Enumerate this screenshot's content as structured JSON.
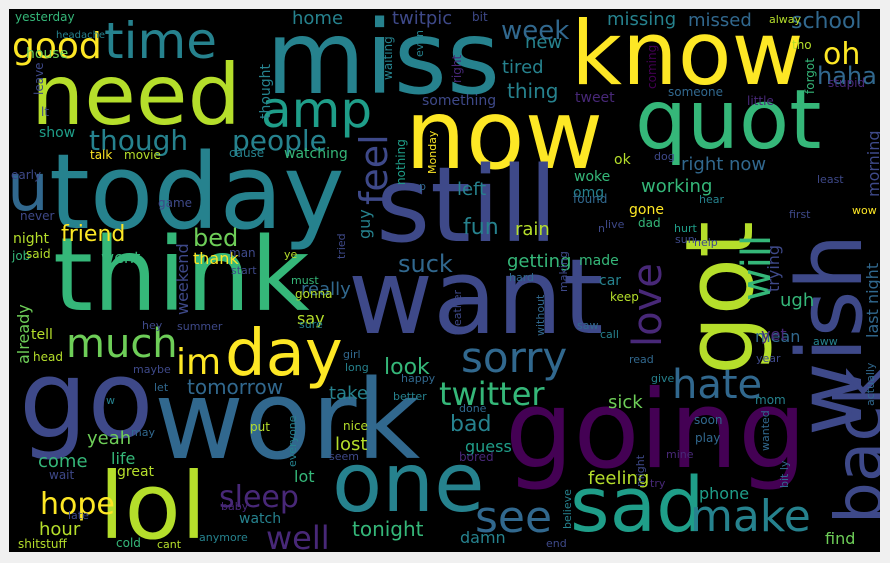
{
  "background": "#000000",
  "palette": [
    "#fde725",
    "#b5de2b",
    "#6ece58",
    "#35b779",
    "#1f9e89",
    "#26828e",
    "#31688e",
    "#3e4989",
    "#482878",
    "#440154"
  ],
  "words": [
    {
      "text": "miss",
      "color": "#26828e"
    },
    {
      "text": "know",
      "color": "#fde725"
    },
    {
      "text": "need",
      "color": "#b5de2b"
    },
    {
      "text": "now",
      "color": "#fde725"
    },
    {
      "text": "quot",
      "color": "#35b779"
    },
    {
      "text": "today",
      "color": "#26828e"
    },
    {
      "text": "still",
      "color": "#3e4989"
    },
    {
      "text": "think",
      "color": "#35b779"
    },
    {
      "text": "want",
      "color": "#3e4989"
    },
    {
      "text": "got",
      "color": "#b5de2b"
    },
    {
      "text": "wish",
      "color": "#3e4989"
    },
    {
      "text": "go",
      "color": "#3e4989"
    },
    {
      "text": "work",
      "color": "#31688e"
    },
    {
      "text": "going",
      "color": "#440154"
    },
    {
      "text": "day",
      "color": "#fde725"
    },
    {
      "text": "one",
      "color": "#26828e"
    },
    {
      "text": "lol",
      "color": "#b5de2b"
    },
    {
      "text": "sad",
      "color": "#1f9e89"
    },
    {
      "text": "back",
      "color": "#3e4989"
    },
    {
      "text": "time",
      "color": "#26828e"
    },
    {
      "text": "amp",
      "color": "#1f9e89"
    },
    {
      "text": "good",
      "color": "#fde725"
    },
    {
      "text": "u",
      "color": "#31688e"
    },
    {
      "text": "though",
      "color": "#26828e"
    },
    {
      "text": "people",
      "color": "#26828e"
    },
    {
      "text": "feel",
      "color": "#3e4989"
    },
    {
      "text": "much",
      "color": "#6ece58"
    },
    {
      "text": "im",
      "color": "#fde725"
    },
    {
      "text": "sorry",
      "color": "#31688e"
    },
    {
      "text": "love",
      "color": "#482878"
    },
    {
      "text": "hate",
      "color": "#31688e"
    },
    {
      "text": "will",
      "color": "#35b779"
    },
    {
      "text": "make",
      "color": "#26828e"
    },
    {
      "text": "twitter",
      "color": "#35b779"
    },
    {
      "text": "see",
      "color": "#31688e"
    },
    {
      "text": "sleep",
      "color": "#482878"
    },
    {
      "text": "hope",
      "color": "#fde725"
    },
    {
      "text": "well",
      "color": "#482878"
    },
    {
      "text": "oh",
      "color": "#fde725"
    },
    {
      "text": "week",
      "color": "#31688e"
    },
    {
      "text": "haha",
      "color": "#31688e"
    },
    {
      "text": "school",
      "color": "#31688e"
    },
    {
      "text": "missing",
      "color": "#26828e"
    },
    {
      "text": "missed",
      "color": "#31688e"
    },
    {
      "text": "tired",
      "color": "#26828e"
    },
    {
      "text": "new",
      "color": "#26828e"
    },
    {
      "text": "thing",
      "color": "#26828e"
    },
    {
      "text": "home",
      "color": "#26828e"
    },
    {
      "text": "twitpic",
      "color": "#3e4989"
    },
    {
      "text": "friend",
      "color": "#fde725"
    },
    {
      "text": "bed",
      "color": "#6ece58"
    },
    {
      "text": "went",
      "color": "#35b779"
    },
    {
      "text": "thank",
      "color": "#fde725"
    },
    {
      "text": "suck",
      "color": "#31688e"
    },
    {
      "text": "really",
      "color": "#31688e"
    },
    {
      "text": "fun",
      "color": "#26828e"
    },
    {
      "text": "rain",
      "color": "#b5de2b"
    },
    {
      "text": "getting",
      "color": "#35b779"
    },
    {
      "text": "working",
      "color": "#35b779"
    },
    {
      "text": "right now",
      "color": "#31688e"
    },
    {
      "text": "morning",
      "color": "#3e4989"
    },
    {
      "text": "last night",
      "color": "#31688e"
    },
    {
      "text": "trying",
      "color": "#3e4989"
    },
    {
      "text": "ugh",
      "color": "#35b779"
    },
    {
      "text": "mean",
      "color": "#31688e"
    },
    {
      "text": "yet",
      "color": "#482878"
    },
    {
      "text": "tomorrow",
      "color": "#31688e"
    },
    {
      "text": "look",
      "color": "#35b779"
    },
    {
      "text": "take",
      "color": "#26828e"
    },
    {
      "text": "bad",
      "color": "#26828e"
    },
    {
      "text": "guess",
      "color": "#1f9e89"
    },
    {
      "text": "sick",
      "color": "#6ece58"
    },
    {
      "text": "lost",
      "color": "#b5de2b"
    },
    {
      "text": "tonight",
      "color": "#35b779"
    },
    {
      "text": "feeling",
      "color": "#b5de2b"
    },
    {
      "text": "phone",
      "color": "#1f9e89"
    },
    {
      "text": "find",
      "color": "#6ece58"
    },
    {
      "text": "damn",
      "color": "#26828e"
    },
    {
      "text": "hour",
      "color": "#b5de2b"
    },
    {
      "text": "come",
      "color": "#35b779"
    },
    {
      "text": "life",
      "color": "#35b779"
    },
    {
      "text": "yeah",
      "color": "#6ece58"
    },
    {
      "text": "great",
      "color": "#b5de2b"
    },
    {
      "text": "watch",
      "color": "#26828e"
    },
    {
      "text": "lot",
      "color": "#35b779"
    },
    {
      "text": "left",
      "color": "#26828e"
    },
    {
      "text": "woke",
      "color": "#35b779"
    },
    {
      "text": "omg",
      "color": "#26828e"
    },
    {
      "text": "gone",
      "color": "#fde725"
    },
    {
      "text": "ok",
      "color": "#b5de2b"
    },
    {
      "text": "found",
      "color": "#31688e"
    },
    {
      "text": "made",
      "color": "#35b779"
    },
    {
      "text": "car",
      "color": "#26828e"
    },
    {
      "text": "guy",
      "color": "#26828e"
    },
    {
      "text": "say",
      "color": "#b5de2b"
    },
    {
      "text": "weekend",
      "color": "#3e4989"
    },
    {
      "text": "already",
      "color": "#6ece58"
    },
    {
      "text": "show",
      "color": "#1f9e89"
    },
    {
      "text": "talk",
      "color": "#fde725"
    },
    {
      "text": "movie",
      "color": "#b5de2b"
    },
    {
      "text": "cause",
      "color": "#26828e"
    },
    {
      "text": "watching",
      "color": "#35b779"
    },
    {
      "text": "night",
      "color": "#b5de2b"
    },
    {
      "text": "house",
      "color": "#6ece58"
    },
    {
      "text": "headache",
      "color": "#26828e"
    },
    {
      "text": "yesterday",
      "color": "#35b779"
    },
    {
      "text": "thought",
      "color": "#26828e"
    },
    {
      "text": "waiting",
      "color": "#26828e"
    },
    {
      "text": "something",
      "color": "#3e4989"
    },
    {
      "text": "tweet",
      "color": "#482878"
    },
    {
      "text": "someone",
      "color": "#31688e"
    },
    {
      "text": "little",
      "color": "#482878"
    },
    {
      "text": "stupid",
      "color": "#482878"
    },
    {
      "text": "forgot",
      "color": "#35b779"
    },
    {
      "text": "tho",
      "color": "#b5de2b"
    },
    {
      "text": "alway",
      "color": "#b5de2b"
    },
    {
      "text": "bit",
      "color": "#3e4989"
    },
    {
      "text": "coming",
      "color": "#440154"
    },
    {
      "text": "right",
      "color": "#482878"
    },
    {
      "text": "Monday",
      "color": "#fde725"
    },
    {
      "text": "nothing",
      "color": "#1f9e89"
    },
    {
      "text": "lt",
      "color": "#3e4989"
    },
    {
      "text": "leave",
      "color": "#3e4989"
    },
    {
      "text": "early",
      "color": "#3e4989"
    },
    {
      "text": "game",
      "color": "#3e4989"
    },
    {
      "text": "never",
      "color": "#3e4989"
    },
    {
      "text": "job",
      "color": "#35b779"
    },
    {
      "text": "said",
      "color": "#b5de2b"
    },
    {
      "text": "tell",
      "color": "#b5de2b"
    },
    {
      "text": "head",
      "color": "#b5de2b"
    },
    {
      "text": "hey",
      "color": "#3e4989"
    },
    {
      "text": "maybe",
      "color": "#3e4989"
    },
    {
      "text": "let",
      "color": "#31688e"
    },
    {
      "text": "w",
      "color": "#26828e"
    },
    {
      "text": "may",
      "color": "#31688e"
    },
    {
      "text": "wait",
      "color": "#3e4989"
    },
    {
      "text": "late",
      "color": "#3e4989"
    },
    {
      "text": "shitstuff",
      "color": "#b5de2b"
    },
    {
      "text": "cold",
      "color": "#35b779"
    },
    {
      "text": "cant",
      "color": "#b5de2b"
    },
    {
      "text": "anymore",
      "color": "#26828e"
    },
    {
      "text": "baby",
      "color": "#482878"
    },
    {
      "text": "put",
      "color": "#b5de2b"
    },
    {
      "text": "everyone",
      "color": "#26828e"
    },
    {
      "text": "nice",
      "color": "#b5de2b"
    },
    {
      "text": "seem",
      "color": "#3e4989"
    },
    {
      "text": "man",
      "color": "#3e4989"
    },
    {
      "text": "start",
      "color": "#3e4989"
    },
    {
      "text": "ye",
      "color": "#b5de2b"
    },
    {
      "text": "tried",
      "color": "#3e4989"
    },
    {
      "text": "must",
      "color": "#35b779"
    },
    {
      "text": "gonna",
      "color": "#b5de2b"
    },
    {
      "text": "sure",
      "color": "#26828e"
    },
    {
      "text": "summer",
      "color": "#3e4989"
    },
    {
      "text": "girl",
      "color": "#31688e"
    },
    {
      "text": "long",
      "color": "#26828e"
    },
    {
      "text": "happy",
      "color": "#31688e"
    },
    {
      "text": "better",
      "color": "#26828e"
    },
    {
      "text": "done",
      "color": "#31688e"
    },
    {
      "text": "bored",
      "color": "#482878"
    },
    {
      "text": "might",
      "color": "#3e4989"
    },
    {
      "text": "mine",
      "color": "#482878"
    },
    {
      "text": "try",
      "color": "#482878"
    },
    {
      "text": "believe",
      "color": "#26828e"
    },
    {
      "text": "end",
      "color": "#3e4989"
    },
    {
      "text": "weather",
      "color": "#3e4989"
    },
    {
      "text": "without",
      "color": "#31688e"
    },
    {
      "text": "making",
      "color": "#3e4989"
    },
    {
      "text": "hard",
      "color": "#31688e"
    },
    {
      "text": "keep",
      "color": "#b5de2b"
    },
    {
      "text": "saw",
      "color": "#31688e"
    },
    {
      "text": "call",
      "color": "#26828e"
    },
    {
      "text": "read",
      "color": "#31688e"
    },
    {
      "text": "give",
      "color": "#26828e"
    },
    {
      "text": "soon",
      "color": "#31688e"
    },
    {
      "text": "play",
      "color": "#31688e"
    },
    {
      "text": "mom",
      "color": "#26828e"
    },
    {
      "text": "year",
      "color": "#3e4989"
    },
    {
      "text": "aww",
      "color": "#26828e"
    },
    {
      "text": "actually",
      "color": "#31688e"
    },
    {
      "text": "wanted",
      "color": "#31688e"
    },
    {
      "text": "bit ly",
      "color": "#31688e"
    },
    {
      "text": "live",
      "color": "#3e4989"
    },
    {
      "text": "dad",
      "color": "#35b779"
    },
    {
      "text": "hurt",
      "color": "#1f9e89"
    },
    {
      "text": "sun",
      "color": "#3e4989"
    },
    {
      "text": "help",
      "color": "#3e4989"
    },
    {
      "text": "dog",
      "color": "#3e4989"
    },
    {
      "text": "hear",
      "color": "#26828e"
    },
    {
      "text": "least",
      "color": "#3e4989"
    },
    {
      "text": "first",
      "color": "#3e4989"
    },
    {
      "text": "wow",
      "color": "#fde725"
    },
    {
      "text": "n",
      "color": "#3e4989"
    },
    {
      "text": "p",
      "color": "#31688e"
    },
    {
      "text": "even",
      "color": "#26828e"
    }
  ]
}
